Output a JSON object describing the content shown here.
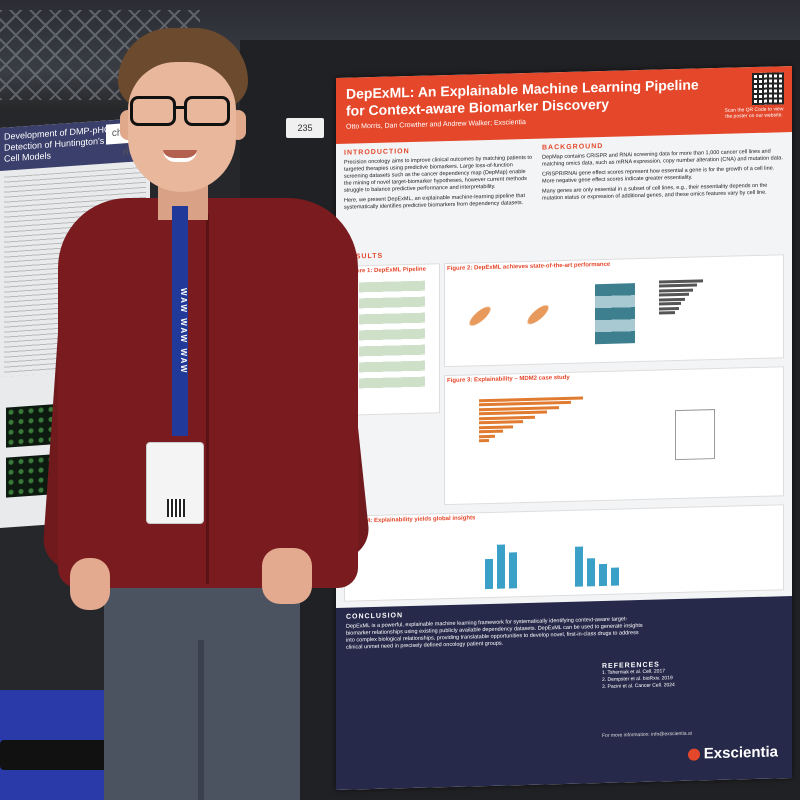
{
  "board_number": "235",
  "left_poster": {
    "title": "Development of DMP-pHCR for Detection of Huntington's Disease Cell Models",
    "logo_text": "charles riv"
  },
  "lanyard_text": "WAW WAW WAW",
  "poster": {
    "title": "DepExML: An Explainable Machine Learning Pipeline for Context-aware Biomarker Discovery",
    "authors": "Otto Morris, Dan Crowther and Andrew Walker; Exscientia",
    "scan_text": "Scan the QR Code to view the poster on our website.",
    "introduction": {
      "heading": "INTRODUCTION",
      "text": "Precision oncology aims to improve clinical outcomes by matching patients to targeted therapies using predictive biomarkers. Large loss-of-function screening datasets such as the cancer dependency map (DepMap) enable the mining of novel target-biomarker hypotheses, however current methods struggle to balance predictive performance and interpretability.",
      "text2": "Here, we present DepExML, an explainable machine-learning pipeline that systematically identifies predictive biomarkers from dependency datasets."
    },
    "background": {
      "heading": "BACKGROUND",
      "bullets": [
        "DepMap contains CRISPR and RNAi screening data for more than 1,000 cancer cell lines and matching omics data, such as mRNA expression, copy number alteration (CNA) and mutation data.",
        "CRISPR/RNAi gene effect scores represent how essential a gene is for the growth of a cell line. More negative gene effect scores indicate greater essentiality.",
        "Many genes are only essential in a subset of cell lines, e.g., their essentiality depends on the mutation status or expression of additional genes, and these omics features vary by cell line."
      ]
    },
    "results_heading": "RESULTS",
    "figures": {
      "fig1": "Figure 1: DepExML Pipeline",
      "fig2": "Figure 2: DepExML achieves state-of-the-art performance",
      "fig3": "Figure 3: Explainability – MDM2 case study",
      "fig4": "Figure 4: Explainability yields global insights"
    },
    "conclusion": {
      "heading": "CONCLUSION",
      "text": "DepExML is a powerful, explainable machine learning framework for systematically identifying context-aware target-biomarker relationships using existing publicly available dependency datasets. DepExML can be used to generate insights into complex biological relationships, providing translatable opportunities to develop novel, first-in-class drugs to address clinical unmet need in precisely defined oncology patient groups."
    },
    "references": {
      "heading": "REFERENCES",
      "items": [
        "1. Tsherniak et al. Cell. 2017",
        "2. Dempster et al. bioRxiv. 2019",
        "3. Pacini et al. Cancer Cell. 2024"
      ]
    },
    "contact": "For more information: info@exscientia.ai",
    "logo": "Exscientia"
  },
  "colors": {
    "poster_header": "#e4472a",
    "poster_footer": "#27294a",
    "shirt": "#7a1b1f",
    "lanyard": "#213a9a"
  }
}
